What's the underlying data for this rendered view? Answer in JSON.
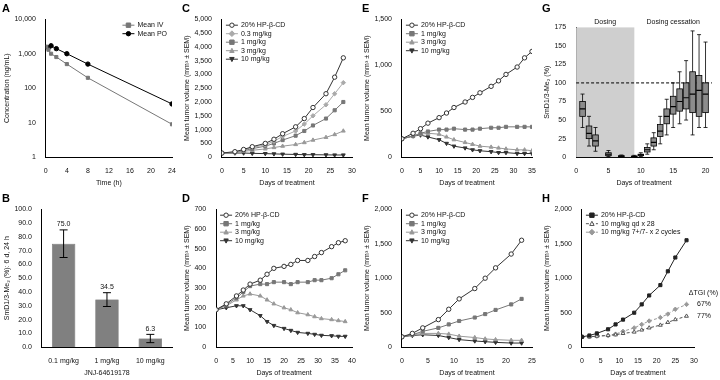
{
  "chart_data": [
    {
      "title": "A",
      "type": "line",
      "log": "y",
      "grid": false,
      "legend": "top-right",
      "x_title": "Time (h)",
      "y_title": "Concentration (ng/mL)",
      "xlim": [
        0,
        24
      ],
      "xticks": [
        0,
        4,
        8,
        12,
        16,
        20,
        24
      ],
      "ylim": [
        1,
        10000
      ],
      "yticks": [
        1,
        10,
        100,
        {
          "value": 1000,
          "label": "1,000"
        },
        {
          "value": 10000,
          "label": "10,000"
        }
      ],
      "x": [
        0.083,
        0.5,
        1,
        2,
        4,
        8,
        24
      ],
      "series": [
        {
          "name": "Mean IV",
          "color": "#777777",
          "marker": "square",
          "line_style": "solid",
          "values": [
            1600,
            1300,
            1000,
            800,
            500,
            200,
            9
          ]
        },
        {
          "name": "Mean PO",
          "color": "#000000",
          "marker": "circle",
          "line_style": "solid",
          "values": [
            null,
            1500,
            1700,
            1400,
            1000,
            500,
            35
          ]
        }
      ]
    },
    {
      "title": "B",
      "type": "bar",
      "grid": false,
      "data_labels": true,
      "color": "#808080",
      "x_title": "JNJ-64619178",
      "y_title": "SmD1/3-Me₂ (%): 6 d, 24 h",
      "categories": [
        "0.1 mg/kg",
        "1 mg/kg",
        "10 mg/kg"
      ],
      "values": [
        75.0,
        34.5,
        6.3
      ],
      "value_labels": [
        "75.0",
        "34.5",
        "6.3"
      ],
      "errors": [
        10,
        5,
        3
      ],
      "ylim": [
        0,
        100
      ],
      "yticks": [
        {
          "value": 0,
          "label": "0.0"
        },
        {
          "value": 10,
          "label": "10.0"
        },
        {
          "value": 20,
          "label": "20.0"
        },
        {
          "value": 30,
          "label": "30.0"
        },
        {
          "value": 40,
          "label": "40.0"
        },
        {
          "value": 50,
          "label": "50.0"
        },
        {
          "value": 60,
          "label": "60.0"
        },
        {
          "value": 70,
          "label": "70.0"
        },
        {
          "value": 80,
          "label": "80.0"
        },
        {
          "value": 90,
          "label": "90.0"
        },
        {
          "value": 100,
          "label": "100.0"
        }
      ]
    },
    {
      "title": "C",
      "type": "line",
      "grid": false,
      "legend": "top-left",
      "x_title": "Days of treatment",
      "y_title": "Mean tumor volume (mm³ ± SEM)",
      "xlim": [
        0,
        30
      ],
      "xticks": [
        0,
        5,
        10,
        15,
        20,
        25,
        30
      ],
      "ylim": [
        0,
        5000
      ],
      "yticks": [
        0,
        500,
        {
          "value": 1000,
          "label": "1,000"
        },
        {
          "value": 1500,
          "label": "1,500"
        },
        {
          "value": 2000,
          "label": "2,000"
        },
        {
          "value": 2500,
          "label": "2,500"
        },
        {
          "value": 3000,
          "label": "3,000"
        },
        {
          "value": 3500,
          "label": "3,500"
        },
        {
          "value": 4000,
          "label": "4,000"
        },
        {
          "value": 4500,
          "label": "4,500"
        },
        {
          "value": 5000,
          "label": "5,000"
        }
      ],
      "x": [
        0,
        3,
        5,
        7,
        10,
        12,
        14,
        17,
        19,
        21,
        24,
        26,
        28
      ],
      "series": [
        {
          "name": "20% HP-β-CD",
          "color": "#333333",
          "marker": "open_circle",
          "line_style": "solid",
          "values": [
            150,
            200,
            280,
            380,
            500,
            650,
            850,
            1100,
            1400,
            1800,
            2300,
            2900,
            3600
          ]
        },
        {
          "name": "0.3 mg/kg",
          "color": "#aaaaaa",
          "marker": "diamond",
          "line_style": "solid",
          "values": [
            150,
            190,
            260,
            350,
            450,
            580,
            750,
            950,
            1200,
            1500,
            1900,
            2300,
            2700
          ]
        },
        {
          "name": "1 mg/kg",
          "color": "#777777",
          "marker": "square",
          "line_style": "solid",
          "values": [
            150,
            180,
            240,
            310,
            400,
            500,
            620,
            780,
            950,
            1150,
            1400,
            1700,
            2000
          ]
        },
        {
          "name": "3 mg/kg",
          "color": "#999999",
          "marker": "triangle",
          "line_style": "solid",
          "values": [
            150,
            170,
            210,
            250,
            300,
            350,
            400,
            460,
            530,
            620,
            720,
            820,
            950
          ]
        },
        {
          "name": "10 mg/kg",
          "color": "#333333",
          "marker": "triangle_down",
          "line_style": "solid",
          "values": [
            150,
            150,
            150,
            140,
            130,
            120,
            110,
            100,
            90,
            90,
            85,
            80,
            80
          ]
        }
      ]
    },
    {
      "title": "D",
      "type": "line",
      "grid": false,
      "legend": "top-left",
      "x_title": "Days of treatment",
      "y_title": "Mean tumor volume (mm³ ± SEM)",
      "xlim": [
        0,
        40
      ],
      "xticks": [
        0,
        5,
        10,
        15,
        20,
        25,
        30,
        35,
        40
      ],
      "ylim": [
        0,
        700
      ],
      "yticks": [
        0,
        100,
        200,
        300,
        400,
        500,
        600,
        700
      ],
      "x": [
        0,
        3,
        6,
        8,
        10,
        13,
        15,
        17,
        20,
        22,
        24,
        27,
        29,
        31,
        34,
        36,
        38
      ],
      "series": [
        {
          "name": "20% HP-β-CD",
          "color": "#333333",
          "marker": "open_circle",
          "line_style": "solid",
          "values": [
            190,
            220,
            260,
            290,
            320,
            340,
            370,
            400,
            410,
            420,
            440,
            440,
            460,
            480,
            510,
            530,
            540
          ]
        },
        {
          "name": "1 mg/kg",
          "color": "#777777",
          "marker": "square",
          "line_style": "solid",
          "values": [
            190,
            215,
            250,
            280,
            310,
            320,
            320,
            330,
            330,
            320,
            330,
            330,
            340,
            340,
            350,
            370,
            390
          ]
        },
        {
          "name": "3 mg/kg",
          "color": "#999999",
          "marker": "triangle",
          "line_style": "solid",
          "values": [
            190,
            210,
            240,
            260,
            270,
            260,
            240,
            220,
            200,
            190,
            175,
            165,
            155,
            145,
            140,
            135,
            130
          ]
        },
        {
          "name": "10 mg/kg",
          "color": "#333333",
          "marker": "triangle_down",
          "line_style": "solid",
          "values": [
            190,
            200,
            210,
            210,
            190,
            160,
            130,
            110,
            95,
            85,
            75,
            70,
            65,
            60,
            58,
            55,
            55
          ]
        }
      ]
    },
    {
      "title": "E",
      "type": "line",
      "grid": false,
      "legend": "top-left",
      "x_title": "Days of treatment",
      "y_title": "Mean tumor volume (mm³ ± SEM)",
      "xlim": [
        0,
        35
      ],
      "xticks": [
        0,
        5,
        10,
        15,
        20,
        25,
        30,
        35
      ],
      "ylim": [
        0,
        1500
      ],
      "yticks": [
        0,
        500,
        {
          "value": 1000,
          "label": "1,000"
        },
        {
          "value": 1500,
          "label": "1,500"
        }
      ],
      "x": [
        0,
        3,
        5,
        7,
        10,
        12,
        14,
        17,
        19,
        21,
        24,
        26,
        28,
        31,
        33,
        35
      ],
      "series": [
        {
          "name": "20% HP-β-CD",
          "color": "#333333",
          "marker": "open_circle",
          "line_style": "solid",
          "values": [
            200,
            260,
            310,
            370,
            430,
            480,
            540,
            600,
            650,
            700,
            770,
            830,
            900,
            980,
            1080,
            1150
          ]
        },
        {
          "name": "1 mg/kg",
          "color": "#777777",
          "marker": "square",
          "line_style": "solid",
          "values": [
            200,
            230,
            260,
            280,
            300,
            300,
            310,
            300,
            300,
            310,
            320,
            320,
            330,
            330,
            330,
            330
          ]
        },
        {
          "name": "3 mg/kg",
          "color": "#999999",
          "marker": "triangle",
          "line_style": "solid",
          "values": [
            200,
            230,
            250,
            260,
            250,
            220,
            190,
            160,
            140,
            120,
            110,
            100,
            90,
            80,
            80,
            70
          ]
        },
        {
          "name": "10 mg/kg",
          "color": "#333333",
          "marker": "triangle_down",
          "line_style": "solid",
          "values": [
            200,
            230,
            240,
            220,
            190,
            150,
            120,
            100,
            80,
            70,
            60,
            50,
            50,
            40,
            40,
            40
          ]
        }
      ]
    },
    {
      "title": "F",
      "type": "line",
      "grid": false,
      "legend": "top-left",
      "x_title": "Days of treatment",
      "y_title": "Mean tumor volume (mm³ ± SEM)",
      "xlim": [
        0,
        25
      ],
      "xticks": [
        0,
        5,
        10,
        15,
        20,
        25
      ],
      "ylim": [
        0,
        2000
      ],
      "yticks": [
        0,
        500,
        {
          "value": 1000,
          "label": "1,000"
        },
        {
          "value": 1500,
          "label": "1,500"
        },
        {
          "value": 2000,
          "label": "2,000"
        }
      ],
      "x": [
        0,
        2,
        4,
        7,
        9,
        11,
        14,
        16,
        18,
        21,
        23
      ],
      "series": [
        {
          "name": "20% HP-β-CD",
          "color": "#333333",
          "marker": "open_circle",
          "line_style": "solid",
          "values": [
            150,
            200,
            280,
            400,
            550,
            700,
            850,
            1000,
            1150,
            1350,
            1550
          ]
        },
        {
          "name": "1 mg/kg",
          "color": "#777777",
          "marker": "square",
          "line_style": "solid",
          "values": [
            150,
            180,
            230,
            280,
            330,
            380,
            430,
            480,
            540,
            620,
            700
          ]
        },
        {
          "name": "3 mg/kg",
          "color": "#999999",
          "marker": "triangle",
          "line_style": "solid",
          "values": [
            150,
            180,
            200,
            200,
            190,
            160,
            140,
            120,
            110,
            100,
            100
          ]
        },
        {
          "name": "10 mg/kg",
          "color": "#333333",
          "marker": "triangle_down",
          "line_style": "solid",
          "values": [
            150,
            170,
            180,
            170,
            140,
            110,
            90,
            80,
            70,
            60,
            60
          ]
        }
      ]
    },
    {
      "title": "G",
      "type": "box",
      "grid": false,
      "color": "#8c8c8c",
      "x_title": "Days of treatment",
      "y_title": "SmD1/3-Me₂ (%)",
      "xlim": [
        0,
        21
      ],
      "xticks": [
        0,
        5,
        10,
        15,
        20
      ],
      "ylim": [
        0,
        175
      ],
      "yticks": [
        0,
        25,
        50,
        75,
        100,
        125,
        150,
        175
      ],
      "shaded_range": [
        0,
        9
      ],
      "reference_line": 100,
      "annotations": [
        "Dosing",
        "Dosing cessation"
      ],
      "boxes": [
        {
          "x": 1,
          "min": 40,
          "q1": 55,
          "median": 65,
          "q3": 75,
          "max": 85
        },
        {
          "x": 2,
          "min": 15,
          "q1": 25,
          "median": 32,
          "q3": 42,
          "max": 55
        },
        {
          "x": 3,
          "min": 8,
          "q1": 15,
          "median": 22,
          "q3": 30,
          "max": 40
        },
        {
          "x": 5,
          "min": 1,
          "q1": 2,
          "median": 4,
          "q3": 6,
          "max": 9
        },
        {
          "x": 7,
          "min": 0,
          "q1": 1,
          "median": 1.5,
          "q3": 2,
          "max": 3
        },
        {
          "x": 9,
          "min": 0,
          "q1": 0.5,
          "median": 1,
          "q3": 1.5,
          "max": 2.5
        },
        {
          "x": 10,
          "min": 1,
          "q1": 2,
          "median": 3,
          "q3": 4,
          "max": 6
        },
        {
          "x": 11,
          "min": 4,
          "q1": 7,
          "median": 10,
          "q3": 13,
          "max": 18
        },
        {
          "x": 12,
          "min": 10,
          "q1": 15,
          "median": 20,
          "q3": 26,
          "max": 33
        },
        {
          "x": 13,
          "min": 18,
          "q1": 28,
          "median": 35,
          "q3": 44,
          "max": 55
        },
        {
          "x": 14,
          "min": 30,
          "q1": 45,
          "median": 55,
          "q3": 65,
          "max": 78
        },
        {
          "x": 15,
          "min": 40,
          "q1": 58,
          "median": 68,
          "q3": 82,
          "max": 100
        },
        {
          "x": 16,
          "min": 45,
          "q1": 62,
          "median": 75,
          "q3": 92,
          "max": 115
        },
        {
          "x": 17,
          "min": 50,
          "q1": 65,
          "median": 80,
          "q3": 100,
          "max": 130
        },
        {
          "x": 18,
          "min": 30,
          "q1": 60,
          "median": 85,
          "q3": 115,
          "max": 170
        },
        {
          "x": 19,
          "min": 40,
          "q1": 55,
          "median": 90,
          "q3": 110,
          "max": 165
        },
        {
          "x": 20,
          "min": 40,
          "q1": 60,
          "median": 85,
          "q3": 100,
          "max": 155
        }
      ]
    },
    {
      "title": "H",
      "type": "line",
      "grid": false,
      "legend": "top-left",
      "x_title": "Days of treatment",
      "y_title": "Mean tumor volume (mm³ ± SEM)",
      "annotation_title": "ΔTGI (%)",
      "xlim": [
        0,
        30
      ],
      "xticks": [
        0,
        5,
        10,
        15,
        20,
        25,
        30
      ],
      "ylim": [
        0,
        2000
      ],
      "yticks": [
        0,
        500,
        {
          "value": 1000,
          "label": "1,000"
        },
        {
          "value": 1500,
          "label": "1,500"
        },
        {
          "value": 2000,
          "label": "2,000"
        }
      ],
      "x": [
        0,
        2,
        4,
        7,
        9,
        11,
        14,
        16,
        18,
        21,
        23,
        25,
        28
      ],
      "series": [
        {
          "name": "20% HP-β-CD",
          "color": "#222222",
          "marker": "square",
          "line_style": "solid",
          "values": [
            150,
            170,
            200,
            260,
            330,
            400,
            500,
            620,
            750,
            900,
            1100,
            1300,
            1550
          ]
        },
        {
          "name": "10 mg/kg qd x 28",
          "color": "#555555",
          "marker": "open_triangle",
          "line_style": "dashed",
          "annotation": "77%",
          "values": [
            150,
            150,
            160,
            170,
            180,
            200,
            220,
            250,
            280,
            320,
            360,
            400,
            450
          ]
        },
        {
          "name": "10 mg/kg 7+/7- x 2 cycles",
          "color": "#999999",
          "marker": "diamond",
          "line_style": "dashed",
          "annotation": "67%",
          "values": [
            150,
            150,
            160,
            170,
            190,
            230,
            280,
            330,
            380,
            430,
            480,
            550,
            620
          ]
        }
      ]
    }
  ]
}
